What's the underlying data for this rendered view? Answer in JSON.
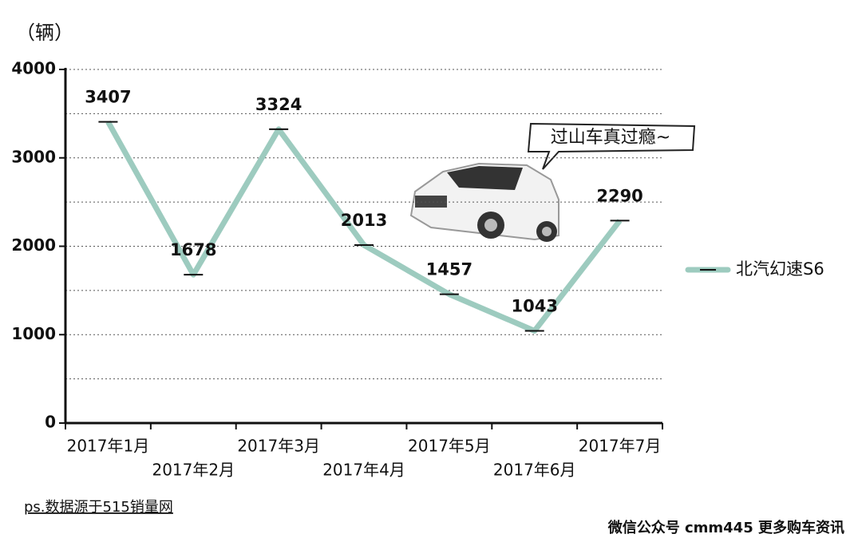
{
  "chart_data": {
    "type": "line",
    "y_axis_label": "（辆）",
    "categories": [
      "2017年1月",
      "2017年2月",
      "2017年3月",
      "2017年4月",
      "2017年5月",
      "2017年6月",
      "2017年7月"
    ],
    "series": [
      {
        "name": "北汽幻速S6",
        "color": "#9dcbbf",
        "values": [
          3407,
          1678,
          3324,
          2013,
          1457,
          1043,
          2290
        ]
      }
    ],
    "ylim": [
      0,
      4000
    ],
    "yticks": [
      0,
      1000,
      2000,
      3000,
      4000
    ],
    "minor_yticks": [
      500,
      1500,
      2500,
      3500
    ],
    "grid": true,
    "legend": "right",
    "annotation": "过山车真过瘾~",
    "source_note": "ps.数据源于515销量网",
    "footer": "微信公众号 cmm445 更多购车资讯"
  }
}
